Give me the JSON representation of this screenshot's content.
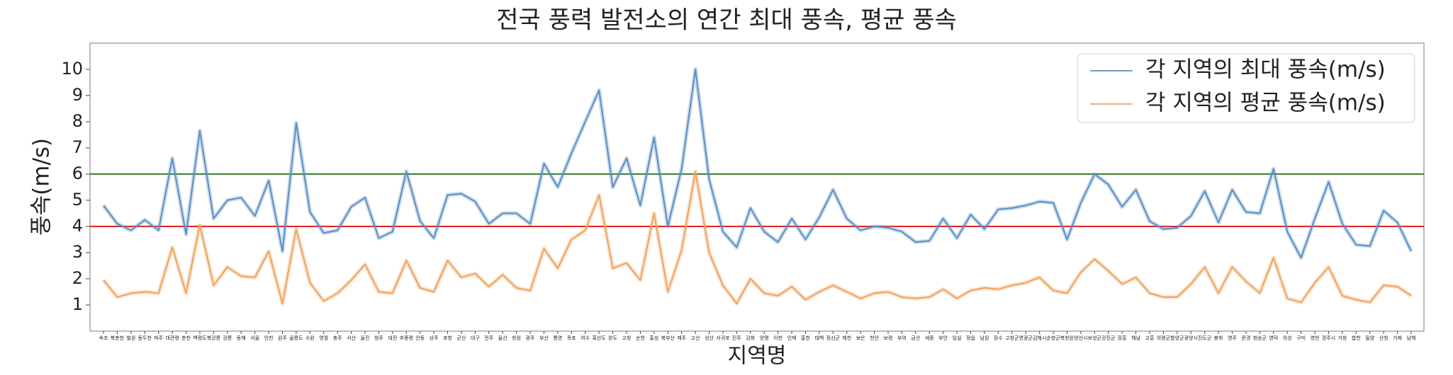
{
  "chart_data": {
    "type": "line",
    "title": "전국 풍력 발전소의 연간 최대 풍속, 평균 풍속",
    "x_label": "지역명",
    "y_label": "풍속(m/s)",
    "categories": [
      "속초",
      "북춘천",
      "철원",
      "동두천",
      "파주",
      "대관령",
      "춘천",
      "백령도",
      "북강릉",
      "강릉",
      "동해",
      "서울",
      "인천",
      "원주",
      "울릉도",
      "수원",
      "영월",
      "충주",
      "서산",
      "울진",
      "청주",
      "대전",
      "추풍령",
      "안동",
      "상주",
      "포항",
      "군산",
      "대구",
      "전주",
      "울산",
      "창원",
      "광주",
      "부산",
      "통영",
      "목포",
      "여수",
      "흑산도",
      "완도",
      "고창",
      "순천",
      "홍성",
      "북부산",
      "제주",
      "고산",
      "성산",
      "서귀포",
      "진주",
      "강화",
      "양평",
      "이천",
      "인제",
      "홍천",
      "태백",
      "정선군",
      "제천",
      "보은",
      "천안",
      "보령",
      "부여",
      "금산",
      "세종",
      "부안",
      "임실",
      "정읍",
      "남원",
      "장수",
      "고창군",
      "영광군",
      "김해시",
      "순창군",
      "북창원",
      "양산시",
      "보성군",
      "강진군",
      "장흥",
      "해남",
      "고흥",
      "의령군",
      "함양군",
      "광양시",
      "진도군",
      "봉화",
      "영주",
      "문경",
      "청송군",
      "영덕",
      "의성",
      "구미",
      "영천",
      "경주시",
      "거창",
      "합천",
      "밀양",
      "산청",
      "거제",
      "남해"
    ],
    "series": [
      {
        "name": "각 지역의 최대 풍속(m/s)",
        "color": "#5b8ec4",
        "values": [
          4.8,
          4.1,
          3.85,
          4.25,
          3.85,
          6.6,
          3.7,
          7.65,
          4.3,
          5.0,
          5.1,
          4.4,
          5.75,
          3.05,
          7.95,
          4.55,
          3.75,
          3.85,
          4.75,
          5.1,
          3.55,
          3.8,
          6.1,
          4.2,
          3.55,
          5.2,
          5.25,
          4.95,
          4.1,
          4.5,
          4.5,
          4.1,
          6.4,
          5.5,
          6.8,
          8.0,
          9.2,
          5.5,
          6.6,
          4.8,
          7.4,
          4.0,
          6.2,
          10.0,
          5.8,
          3.8,
          3.2,
          4.7,
          3.8,
          3.4,
          4.3,
          3.5,
          4.35,
          5.4,
          4.3,
          3.85,
          4.0,
          3.95,
          3.8,
          3.4,
          3.45,
          4.3,
          3.55,
          4.45,
          3.9,
          4.65,
          4.7,
          4.8,
          4.95,
          4.9,
          3.5,
          4.9,
          6.0,
          5.6,
          4.75,
          5.4,
          4.2,
          3.9,
          3.95,
          4.4,
          5.35,
          4.15,
          5.4,
          4.55,
          4.5,
          6.2,
          3.8,
          2.8,
          4.3,
          5.7,
          4.1,
          3.3,
          3.25,
          4.6,
          4.15,
          3.05
        ]
      },
      {
        "name": "각 지역의 평균 풍속(m/s)",
        "color": "#f0a35e",
        "values": [
          1.95,
          1.3,
          1.45,
          1.5,
          1.45,
          3.2,
          1.45,
          4.05,
          1.75,
          2.45,
          2.1,
          2.05,
          3.05,
          1.05,
          3.9,
          1.85,
          1.15,
          1.45,
          1.95,
          2.55,
          1.5,
          1.45,
          2.7,
          1.65,
          1.5,
          2.7,
          2.05,
          2.2,
          1.7,
          2.15,
          1.65,
          1.55,
          3.15,
          2.4,
          3.5,
          3.85,
          5.2,
          2.4,
          2.6,
          1.95,
          4.5,
          1.5,
          3.1,
          6.1,
          3.0,
          1.75,
          1.05,
          2.0,
          1.45,
          1.35,
          1.7,
          1.2,
          1.5,
          1.75,
          1.5,
          1.25,
          1.45,
          1.5,
          1.3,
          1.25,
          1.3,
          1.6,
          1.25,
          1.55,
          1.65,
          1.6,
          1.75,
          1.85,
          2.05,
          1.55,
          1.45,
          2.25,
          2.75,
          2.3,
          1.8,
          2.05,
          1.45,
          1.3,
          1.3,
          1.8,
          2.45,
          1.45,
          2.45,
          1.9,
          1.45,
          2.8,
          1.25,
          1.1,
          1.85,
          2.45,
          1.35,
          1.2,
          1.1,
          1.75,
          1.7,
          1.35
        ]
      }
    ],
    "hlines": [
      {
        "value": 6,
        "color": "#3d7f2e"
      },
      {
        "value": 4,
        "color": "#e3241f"
      }
    ],
    "ylim": [
      0,
      11
    ],
    "yticks": [
      1,
      2,
      3,
      4,
      5,
      6,
      7,
      8,
      9,
      10
    ],
    "grid": false,
    "legend": "upper right"
  }
}
